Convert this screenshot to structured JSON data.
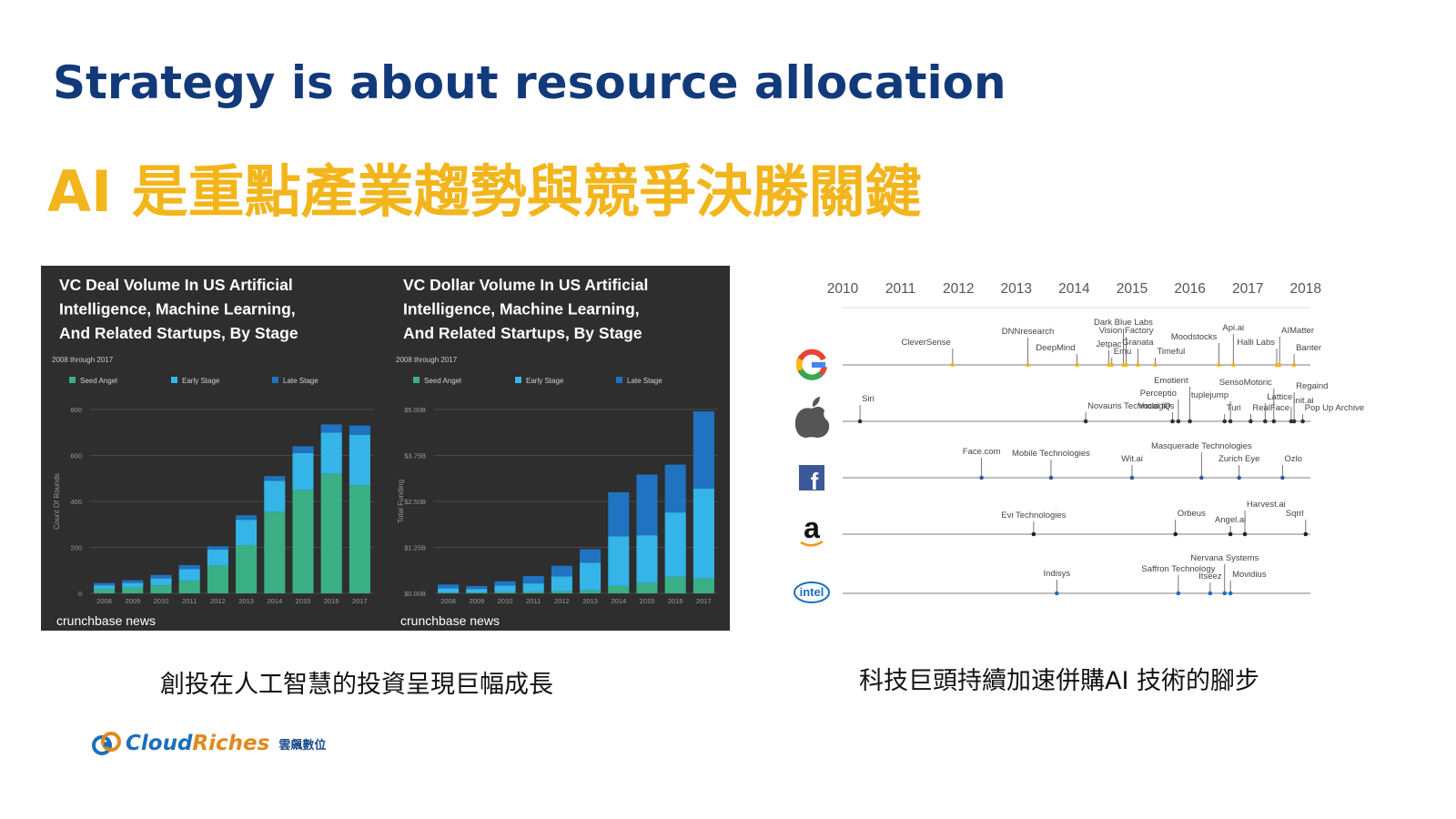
{
  "title_en": "Strategy is about resource allocation",
  "title_zh": "AI 是重點產業趨勢與競爭決勝關鍵",
  "caption_left": "創投在人工智慧的投資呈現巨幅成長",
  "caption_right": "科技巨頭持續加速併購AI 技術的腳步",
  "logo": {
    "cloud": "Cloud",
    "riches": "Riches",
    "sub": "雲飆數位"
  },
  "colors": {
    "seed": "#3aaf85",
    "early": "#35b4e8",
    "late": "#1f73c0",
    "panel": "#2e2e2e",
    "title_blue": "#123a7a",
    "title_gold": "#f2b51c"
  },
  "chart_data": [
    {
      "type": "bar",
      "stacked": true,
      "title": "VC Deal Volume In US Artificial Intelligence, Machine Learning, And Related Startups, By Stage",
      "subtitle": "2008 through 2017",
      "ylabel": "Count Of Rounds",
      "ylim": [
        0,
        800
      ],
      "yticks": [
        "0",
        "200",
        "400",
        "600",
        "800"
      ],
      "grid": true,
      "legend": "top-left",
      "categories": [
        "2008",
        "2009",
        "2010",
        "2011",
        "2012",
        "2013",
        "2014",
        "2015",
        "2016",
        "2017"
      ],
      "series": [
        {
          "name": "Seed Angel",
          "values": [
            20,
            25,
            35,
            55,
            120,
            210,
            355,
            450,
            520,
            470
          ]
        },
        {
          "name": "Early Stage",
          "values": [
            15,
            20,
            30,
            50,
            70,
            110,
            135,
            160,
            180,
            220
          ]
        },
        {
          "name": "Late Stage",
          "values": [
            10,
            12,
            15,
            18,
            15,
            20,
            20,
            30,
            35,
            40
          ]
        }
      ],
      "source": "crunchbase news"
    },
    {
      "type": "bar",
      "stacked": true,
      "title": "VC Dollar Volume In US Artificial Intelligence, Machine Learning, And Related Startups, By Stage",
      "subtitle": "2008 through 2017",
      "ylabel": "Total Funding",
      "ylim": [
        0,
        5000
      ],
      "yticks": [
        "$0.00B",
        "$1.25B",
        "$2.50B",
        "$3.75B",
        "$5.00B"
      ],
      "grid": true,
      "legend": "top-left",
      "categories": [
        "2008",
        "2009",
        "2010",
        "2011",
        "2012",
        "2013",
        "2014",
        "2015",
        "2016",
        "2017"
      ],
      "series": [
        {
          "name": "Seed Angel",
          "values": [
            20,
            20,
            30,
            40,
            60,
            80,
            200,
            280,
            450,
            400
          ]
        },
        {
          "name": "Early Stage",
          "values": [
            120,
            100,
            180,
            230,
            400,
            750,
            1350,
            1300,
            1750,
            2450
          ]
        },
        {
          "name": "Late Stage",
          "values": [
            100,
            80,
            120,
            200,
            290,
            370,
            1200,
            1650,
            1300,
            2100
          ]
        }
      ],
      "source": "crunchbase news"
    }
  ],
  "timeline": {
    "years": [
      "2010",
      "2011",
      "2012",
      "2013",
      "2014",
      "2015",
      "2016",
      "2017",
      "2018"
    ],
    "companies": [
      {
        "name": "Google",
        "icon": "google-logo-icon",
        "color": "#f2b51c",
        "events": [
          {
            "label": "CleverSense",
            "date": 2011.9
          },
          {
            "label": "DNNresearch",
            "date": 2013.2
          },
          {
            "label": "DeepMind",
            "date": 2014.05
          },
          {
            "label": "Jetpac",
            "date": 2014.6
          },
          {
            "label": "Emu",
            "date": 2014.65
          },
          {
            "label": "Dark Blue Labs",
            "date": 2014.85
          },
          {
            "label": "Vision Factory",
            "date": 2014.9
          },
          {
            "label": "Granata",
            "date": 2015.1
          },
          {
            "label": "Timeful",
            "date": 2015.4
          },
          {
            "label": "Moodstocks",
            "date": 2016.5
          },
          {
            "label": "Api.ai",
            "date": 2016.75
          },
          {
            "label": "Halli Labs",
            "date": 2017.5
          },
          {
            "label": "AIMatter",
            "date": 2017.55
          },
          {
            "label": "Banter",
            "date": 2017.8
          }
        ]
      },
      {
        "name": "Apple",
        "icon": "apple-logo-icon",
        "color": "#333333",
        "events": [
          {
            "label": "Siri",
            "date": 2010.3
          },
          {
            "label": "Novauris Technologies",
            "date": 2014.2
          },
          {
            "label": "Vocal IQ",
            "date": 2015.7
          },
          {
            "label": "Perceptio",
            "date": 2015.8
          },
          {
            "label": "Emotient",
            "date": 2016.0
          },
          {
            "label": "Turi",
            "date": 2016.6
          },
          {
            "label": "tuplejump",
            "date": 2016.7
          },
          {
            "label": "RealFace",
            "date": 2017.05
          },
          {
            "label": "Lattice",
            "date": 2017.3
          },
          {
            "label": "SensoMotoric",
            "date": 2017.45
          },
          {
            "label": "Init.ai",
            "date": 2017.75
          },
          {
            "label": "Regaind",
            "date": 2017.8
          },
          {
            "label": "Pop Up Archive",
            "date": 2017.95
          }
        ]
      },
      {
        "name": "Facebook",
        "icon": "facebook-logo-icon",
        "color": "#3b5998",
        "events": [
          {
            "label": "Face.com",
            "date": 2012.4
          },
          {
            "label": "Mobile Technologies",
            "date": 2013.6
          },
          {
            "label": "Wit.ai",
            "date": 2015.0
          },
          {
            "label": "Masquerade Technologies",
            "date": 2016.2
          },
          {
            "label": "Zurich Eye",
            "date": 2016.85
          },
          {
            "label": "Ozlo",
            "date": 2017.6
          }
        ]
      },
      {
        "name": "Amazon",
        "icon": "amazon-logo-icon",
        "color": "#222222",
        "events": [
          {
            "label": "Evi Technologies",
            "date": 2013.3
          },
          {
            "label": "Orbeus",
            "date": 2015.75
          },
          {
            "label": "Angel.ai",
            "date": 2016.7
          },
          {
            "label": "Harvest.ai",
            "date": 2016.95
          },
          {
            "label": "Sqrrl",
            "date": 2018.0
          }
        ]
      },
      {
        "name": "Intel",
        "icon": "intel-logo-icon",
        "color": "#1a6fc0",
        "events": [
          {
            "label": "Indisys",
            "date": 2013.7
          },
          {
            "label": "Saffron Technology",
            "date": 2015.8
          },
          {
            "label": "Itseez",
            "date": 2016.35
          },
          {
            "label": "Nervana Systems",
            "date": 2016.6
          },
          {
            "label": "Movidius",
            "date": 2016.7
          }
        ]
      }
    ]
  }
}
